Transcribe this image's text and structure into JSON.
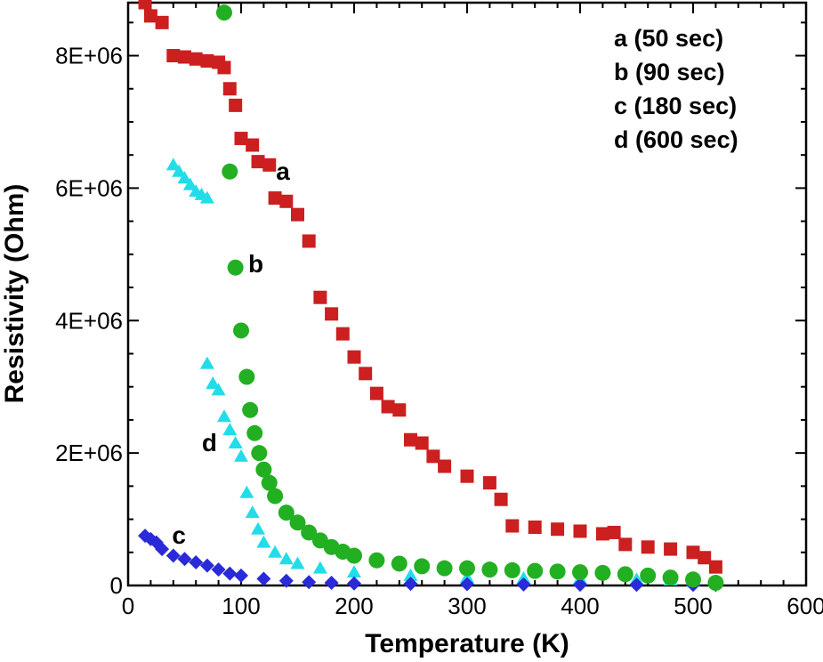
{
  "chart_data": {
    "type": "scatter",
    "title": "",
    "xlabel": "Temperature (K)",
    "ylabel": "Resistivity (Ohm)",
    "xlim": [
      0,
      600
    ],
    "ylim": [
      0,
      8800000
    ],
    "xticks": [
      0,
      100,
      200,
      300,
      400,
      500,
      600
    ],
    "xtick_labels": [
      "0",
      "100",
      "200",
      "300",
      "400",
      "500",
      "600"
    ],
    "yticks": [
      0,
      2000000,
      4000000,
      6000000,
      8000000
    ],
    "ytick_labels": [
      "0",
      "2E+06",
      "4E+06",
      "6E+06",
      "8E+06"
    ],
    "grid": false,
    "legend": {
      "placement": "top-right",
      "entries": [
        "a (50 sec)",
        "b (90 sec)",
        "c (180 sec)",
        "d (600 sec)"
      ]
    },
    "series": [
      {
        "name": "a",
        "legend": "a (50 sec)",
        "marker": "square",
        "color": "#cc1f1f",
        "points": [
          [
            15,
            8800000
          ],
          [
            20,
            8600000
          ],
          [
            30,
            8500000
          ],
          [
            40,
            8000000
          ],
          [
            50,
            7980000
          ],
          [
            60,
            7950000
          ],
          [
            70,
            7920000
          ],
          [
            80,
            7900000
          ],
          [
            85,
            7820000
          ],
          [
            90,
            7500000
          ],
          [
            95,
            7250000
          ],
          [
            100,
            6750000
          ],
          [
            110,
            6650000
          ],
          [
            115,
            6400000
          ],
          [
            125,
            6350000
          ],
          [
            130,
            5850000
          ],
          [
            140,
            5800000
          ],
          [
            150,
            5600000
          ],
          [
            160,
            5200000
          ],
          [
            170,
            4350000
          ],
          [
            180,
            4100000
          ],
          [
            190,
            3800000
          ],
          [
            200,
            3450000
          ],
          [
            210,
            3200000
          ],
          [
            220,
            2900000
          ],
          [
            230,
            2700000
          ],
          [
            240,
            2650000
          ],
          [
            250,
            2200000
          ],
          [
            260,
            2150000
          ],
          [
            270,
            1950000
          ],
          [
            280,
            1800000
          ],
          [
            300,
            1650000
          ],
          [
            320,
            1550000
          ],
          [
            330,
            1300000
          ],
          [
            340,
            900000
          ],
          [
            360,
            880000
          ],
          [
            380,
            850000
          ],
          [
            400,
            820000
          ],
          [
            420,
            780000
          ],
          [
            430,
            800000
          ],
          [
            440,
            620000
          ],
          [
            460,
            580000
          ],
          [
            480,
            550000
          ],
          [
            500,
            500000
          ],
          [
            510,
            420000
          ],
          [
            520,
            280000
          ]
        ]
      },
      {
        "name": "b",
        "legend": "b (90 sec)",
        "marker": "circle",
        "color": "#22b022",
        "points": [
          [
            85,
            8650000
          ],
          [
            90,
            6250000
          ],
          [
            95,
            4800000
          ],
          [
            100,
            3850000
          ],
          [
            105,
            3150000
          ],
          [
            108,
            2650000
          ],
          [
            112,
            2300000
          ],
          [
            116,
            2000000
          ],
          [
            120,
            1750000
          ],
          [
            125,
            1550000
          ],
          [
            130,
            1350000
          ],
          [
            140,
            1100000
          ],
          [
            150,
            950000
          ],
          [
            160,
            800000
          ],
          [
            170,
            680000
          ],
          [
            180,
            580000
          ],
          [
            190,
            510000
          ],
          [
            200,
            450000
          ],
          [
            220,
            380000
          ],
          [
            240,
            330000
          ],
          [
            260,
            290000
          ],
          [
            280,
            260000
          ],
          [
            300,
            260000
          ],
          [
            320,
            240000
          ],
          [
            340,
            230000
          ],
          [
            360,
            220000
          ],
          [
            380,
            210000
          ],
          [
            400,
            200000
          ],
          [
            420,
            190000
          ],
          [
            440,
            170000
          ],
          [
            460,
            150000
          ],
          [
            480,
            120000
          ],
          [
            500,
            90000
          ],
          [
            520,
            40000
          ]
        ]
      },
      {
        "name": "c",
        "legend": "c (180 sec)",
        "marker": "diamond",
        "color": "#2a2ad8",
        "points": [
          [
            15,
            750000
          ],
          [
            20,
            700000
          ],
          [
            25,
            650000
          ],
          [
            30,
            550000
          ],
          [
            40,
            450000
          ],
          [
            50,
            400000
          ],
          [
            60,
            350000
          ],
          [
            70,
            300000
          ],
          [
            80,
            240000
          ],
          [
            90,
            180000
          ],
          [
            100,
            150000
          ],
          [
            120,
            100000
          ],
          [
            140,
            70000
          ],
          [
            160,
            50000
          ],
          [
            180,
            40000
          ],
          [
            200,
            30000
          ],
          [
            250,
            25000
          ],
          [
            300,
            20000
          ],
          [
            350,
            15000
          ],
          [
            400,
            12000
          ],
          [
            450,
            10000
          ],
          [
            500,
            10000
          ],
          [
            520,
            10000
          ]
        ]
      },
      {
        "name": "d",
        "legend": "d (600 sec)",
        "marker": "triangle",
        "color": "#22dde8",
        "points": [
          [
            40,
            6350000
          ],
          [
            45,
            6250000
          ],
          [
            50,
            6150000
          ],
          [
            55,
            6050000
          ],
          [
            60,
            5950000
          ],
          [
            65,
            5900000
          ],
          [
            70,
            5850000
          ],
          [
            70,
            3350000
          ],
          [
            75,
            3050000
          ],
          [
            80,
            2950000
          ],
          [
            85,
            2550000
          ],
          [
            90,
            2350000
          ],
          [
            95,
            2150000
          ],
          [
            100,
            1950000
          ],
          [
            105,
            1400000
          ],
          [
            110,
            1100000
          ],
          [
            115,
            850000
          ],
          [
            120,
            650000
          ],
          [
            130,
            500000
          ],
          [
            140,
            400000
          ],
          [
            150,
            330000
          ],
          [
            170,
            260000
          ],
          [
            200,
            200000
          ],
          [
            250,
            150000
          ],
          [
            300,
            120000
          ],
          [
            350,
            110000
          ],
          [
            400,
            100000
          ],
          [
            450,
            90000
          ],
          [
            480,
            80000
          ],
          [
            500,
            70000
          ],
          [
            520,
            60000
          ]
        ]
      }
    ],
    "curve_labels": [
      {
        "text": "a",
        "series": "a",
        "x": 137,
        "y": 6250000
      },
      {
        "text": "b",
        "series": "b",
        "x": 113,
        "y": 4850000
      },
      {
        "text": "c",
        "series": "c",
        "x": 45,
        "y": 750000
      },
      {
        "text": "d",
        "series": "d",
        "x": 72,
        "y": 2150000
      }
    ]
  }
}
